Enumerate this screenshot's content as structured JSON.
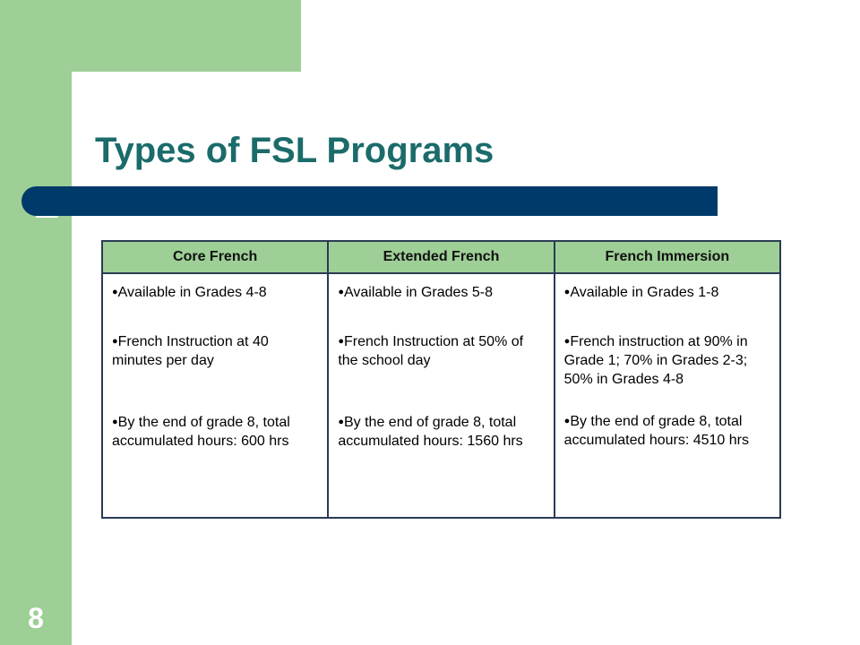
{
  "slide": {
    "title": "Types of FSL Programs",
    "page_number": "8"
  },
  "table": {
    "headers": [
      "Core French",
      "Extended French",
      "French Immersion"
    ],
    "columns": [
      [
        "Available in Grades 4-8",
        "French Instruction at 40 minutes per day",
        "By the end of grade 8, total accumulated hours: 600 hrs"
      ],
      [
        "Available in Grades 5-8",
        "French Instruction at 50% of the school day",
        "By the end of grade 8, total accumulated hours: 1560 hrs"
      ],
      [
        "Available in Grades 1-8",
        "French instruction at 90% in Grade 1; 70% in Grades 2-3; 50% in Grades 4-8",
        "By the end of grade 8, total accumulated hours: 4510 hrs"
      ]
    ]
  },
  "colors": {
    "green_accent": "#9ecf96",
    "title_teal": "#1b6b6b",
    "rule_navy": "#003a6a"
  }
}
